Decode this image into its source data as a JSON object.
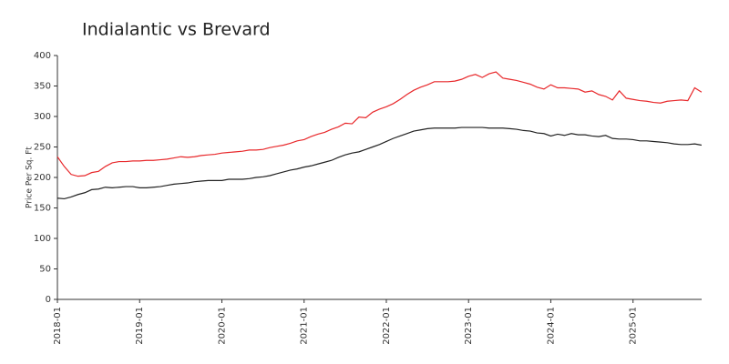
{
  "chart_data": {
    "type": "line",
    "title": "Indialantic vs Brevard",
    "y_label": "Price Per Sq. Ft",
    "categories": [
      "2018-01",
      null,
      null,
      null,
      null,
      null,
      null,
      null,
      null,
      null,
      null,
      null,
      "2019-01",
      null,
      null,
      null,
      null,
      null,
      null,
      null,
      null,
      null,
      null,
      null,
      "2020-01",
      null,
      null,
      null,
      null,
      null,
      null,
      null,
      null,
      null,
      null,
      null,
      "2021-01",
      null,
      null,
      null,
      null,
      null,
      null,
      null,
      null,
      null,
      null,
      null,
      "2022-01",
      null,
      null,
      null,
      null,
      null,
      null,
      null,
      null,
      null,
      null,
      null,
      "2023-01",
      null,
      null,
      null,
      null,
      null,
      null,
      null,
      null,
      null,
      null,
      null,
      "2024-01",
      null,
      null,
      null,
      null,
      null,
      null,
      null,
      null,
      null,
      null,
      null,
      "2025-01",
      null,
      null,
      null,
      null,
      null,
      null,
      null,
      null,
      null,
      null
    ],
    "series": [
      {
        "color": "#e8282b",
        "values": [
          234,
          218,
          205,
          202,
          203,
          208,
          210,
          218,
          224,
          226,
          226,
          227,
          227,
          228,
          228,
          229,
          230,
          232,
          234,
          233,
          234,
          236,
          237,
          238,
          240,
          241,
          242,
          243,
          245,
          245,
          246,
          249,
          251,
          253,
          256,
          260,
          262,
          267,
          271,
          274,
          279,
          283,
          289,
          288,
          299,
          298,
          307,
          312,
          316,
          321,
          328,
          336,
          343,
          348,
          352,
          357,
          357,
          357,
          358,
          361,
          366,
          369,
          364,
          370,
          373,
          363,
          361,
          359,
          356,
          353,
          348,
          345,
          352,
          347,
          347,
          346,
          345,
          340,
          342,
          336,
          333,
          327,
          342,
          330,
          328,
          326,
          325,
          323,
          322,
          325,
          326,
          327,
          326,
          347,
          340
        ]
      },
      {
        "color": "#222222",
        "values": [
          166,
          165,
          168,
          172,
          175,
          180,
          181,
          184,
          183,
          184,
          185,
          185,
          183,
          183,
          184,
          185,
          187,
          189,
          190,
          191,
          193,
          194,
          195,
          195,
          195,
          197,
          197,
          197,
          198,
          200,
          201,
          203,
          206,
          209,
          212,
          214,
          217,
          219,
          222,
          225,
          228,
          233,
          237,
          240,
          242,
          246,
          250,
          254,
          259,
          264,
          268,
          272,
          276,
          278,
          280,
          281,
          281,
          281,
          281,
          282,
          282,
          282,
          282,
          281,
          281,
          281,
          280,
          279,
          277,
          276,
          273,
          272,
          268,
          271,
          269,
          272,
          270,
          270,
          268,
          267,
          269,
          264,
          263,
          263,
          262,
          260,
          260,
          259,
          258,
          257,
          255,
          254,
          254,
          255,
          253
        ]
      }
    ],
    "ylim": [
      0,
      400
    ],
    "yticks": [
      0,
      50,
      100,
      150,
      200,
      250,
      300,
      350,
      400
    ]
  }
}
